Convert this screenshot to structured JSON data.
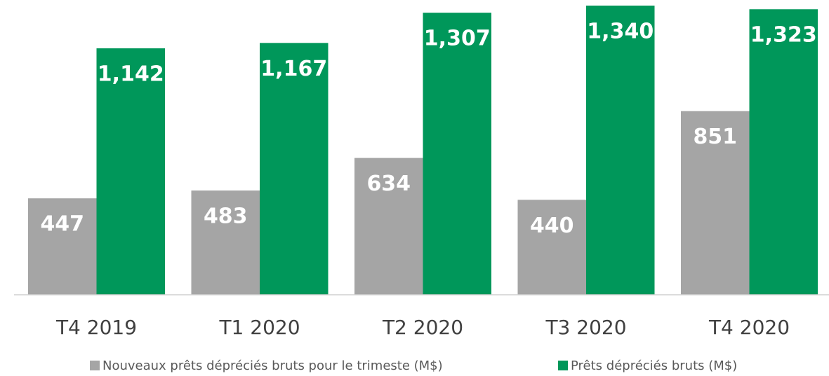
{
  "chart_data": {
    "type": "bar",
    "categories": [
      "T4 2019",
      "T1 2020",
      "T2 2020",
      "T3 2020",
      "T4 2020"
    ],
    "series": [
      {
        "name": "Nouveaux prêts dépréciés bruts pour le trimeste (M$)",
        "color": "#a5a5a5",
        "values": [
          447,
          483,
          634,
          440,
          851
        ]
      },
      {
        "name": "Prêts dépréciés bruts (M$)",
        "color": "#00975a",
        "values": [
          1142,
          1167,
          1307,
          1340,
          1323
        ],
        "value_labels": [
          "1,142",
          "1,167",
          "1,307",
          "1,340",
          "1,323"
        ]
      }
    ],
    "legend": "bottom"
  }
}
